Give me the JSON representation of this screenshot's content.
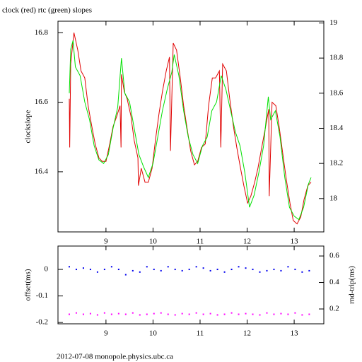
{
  "chart_data": [
    {
      "type": "line",
      "title": "clock (red) rtc (green) slopes",
      "ylabel": "clockslope",
      "xlim": [
        7.98,
        13.63
      ],
      "xticks": [
        9,
        10,
        11,
        12,
        13
      ],
      "ylim": [
        16.227,
        16.833
      ],
      "yticks": [
        16.4,
        16.6,
        16.8
      ],
      "y2lim": [
        17.81,
        19.01
      ],
      "y2ticks": [
        18,
        18.2,
        18.4,
        18.6,
        18.8,
        19
      ],
      "series": [
        {
          "color": "#e00000",
          "axis": "y",
          "x": [
            8.22,
            8.23,
            8.25,
            8.28,
            8.32,
            8.4,
            8.47,
            8.55,
            8.62,
            8.7,
            8.77,
            8.85,
            8.92,
            9.0,
            9.08,
            9.15,
            9.23,
            9.3,
            9.32,
            9.33,
            9.39,
            9.45,
            9.53,
            9.6,
            9.68,
            9.69,
            9.75,
            9.83,
            9.9,
            9.98,
            10.05,
            10.13,
            10.2,
            10.28,
            10.35,
            10.37,
            10.43,
            10.5,
            10.58,
            10.65,
            10.73,
            10.8,
            10.88,
            10.95,
            11.03,
            11.11,
            11.18,
            11.26,
            11.33,
            11.41,
            11.44,
            11.48,
            11.56,
            11.63,
            11.71,
            11.78,
            11.86,
            11.93,
            12.01,
            12.08,
            12.16,
            12.23,
            12.31,
            12.38,
            12.46,
            12.47,
            12.53,
            12.61,
            12.68,
            12.76,
            12.83,
            12.91,
            12.98,
            13.06,
            13.14,
            13.21,
            13.25,
            13.29,
            13.36
          ],
          "values": [
            16.61,
            16.47,
            16.71,
            16.75,
            16.8,
            16.75,
            16.69,
            16.67,
            16.59,
            16.53,
            16.48,
            16.44,
            16.43,
            16.43,
            16.48,
            16.53,
            16.56,
            16.59,
            16.47,
            16.68,
            16.63,
            16.61,
            16.56,
            16.49,
            16.44,
            16.36,
            16.41,
            16.37,
            16.37,
            16.41,
            16.49,
            16.57,
            16.63,
            16.69,
            16.73,
            16.46,
            16.77,
            16.75,
            16.67,
            16.59,
            16.52,
            16.46,
            16.42,
            16.43,
            16.47,
            16.48,
            16.59,
            16.67,
            16.67,
            16.69,
            16.47,
            16.71,
            16.69,
            16.61,
            16.53,
            16.47,
            16.41,
            16.36,
            16.31,
            16.33,
            16.37,
            16.41,
            16.47,
            16.52,
            16.58,
            16.33,
            16.6,
            16.59,
            16.53,
            16.45,
            16.38,
            16.31,
            16.26,
            16.25,
            16.27,
            16.32,
            16.34,
            16.36,
            16.37
          ]
        },
        {
          "color": "#00e000",
          "axis": "y2",
          "x": [
            8.22,
            8.25,
            8.3,
            8.35,
            8.45,
            8.55,
            8.65,
            8.75,
            8.85,
            8.95,
            9.05,
            9.15,
            9.25,
            9.33,
            9.4,
            9.5,
            9.6,
            9.7,
            9.8,
            9.9,
            10.0,
            10.1,
            10.2,
            10.3,
            10.4,
            10.45,
            10.55,
            10.65,
            10.75,
            10.85,
            10.95,
            11.05,
            11.15,
            11.25,
            11.35,
            11.45,
            11.55,
            11.65,
            11.75,
            11.85,
            11.95,
            12.05,
            12.15,
            12.25,
            12.35,
            12.45,
            12.5,
            12.6,
            12.7,
            12.8,
            12.9,
            13.0,
            13.1,
            13.2,
            13.3,
            13.36
          ],
          "values": [
            18.6,
            18.85,
            18.9,
            18.75,
            18.7,
            18.55,
            18.45,
            18.3,
            18.22,
            18.2,
            18.25,
            18.4,
            18.52,
            18.8,
            18.6,
            18.55,
            18.4,
            18.25,
            18.18,
            18.12,
            18.2,
            18.35,
            18.5,
            18.62,
            18.72,
            18.82,
            18.7,
            18.5,
            18.35,
            18.25,
            18.2,
            18.3,
            18.35,
            18.5,
            18.55,
            18.7,
            18.62,
            18.5,
            18.38,
            18.3,
            18.15,
            17.95,
            18.02,
            18.15,
            18.3,
            18.58,
            18.45,
            18.5,
            18.35,
            18.12,
            17.95,
            17.9,
            17.88,
            17.95,
            18.08,
            18.12
          ]
        }
      ]
    },
    {
      "type": "scatter",
      "ylabel": "offset(ms)",
      "y2label": "rnd-trip(ms)",
      "xlim": [
        7.98,
        13.63
      ],
      "xticks": [
        9,
        10,
        11,
        12,
        13
      ],
      "ylim": [
        -0.205,
        0.088
      ],
      "yticks": [
        0,
        -0.1,
        -0.2
      ],
      "y2lim": [
        0.088,
        0.675
      ],
      "y2ticks": [
        0.2,
        0.4,
        0.6
      ],
      "series": [
        {
          "color": "#0000ee",
          "axis": "y",
          "x": [
            8.22,
            8.37,
            8.52,
            8.67,
            8.82,
            8.97,
            9.12,
            9.27,
            9.42,
            9.57,
            9.72,
            9.87,
            10.02,
            10.17,
            10.32,
            10.47,
            10.62,
            10.77,
            10.92,
            11.07,
            11.22,
            11.37,
            11.52,
            11.67,
            11.82,
            11.97,
            12.12,
            12.27,
            12.42,
            12.57,
            12.72,
            12.87,
            13.02,
            13.17,
            13.32
          ],
          "values": [
            0.01,
            0.0,
            0.005,
            0.0,
            -0.01,
            0.0,
            0.01,
            0.0,
            -0.02,
            -0.005,
            -0.01,
            0.01,
            0.0,
            -0.005,
            0.01,
            0.0,
            -0.005,
            0.0,
            0.01,
            0.005,
            -0.005,
            0.0,
            -0.01,
            0.0,
            0.01,
            0.005,
            0.0,
            -0.01,
            -0.005,
            0.0,
            -0.005,
            0.01,
            0.0,
            -0.01,
            -0.005
          ]
        },
        {
          "color": "#ff00ff",
          "axis": "y2",
          "x": [
            8.22,
            8.37,
            8.52,
            8.67,
            8.82,
            8.97,
            9.12,
            9.27,
            9.42,
            9.57,
            9.72,
            9.87,
            10.02,
            10.17,
            10.32,
            10.47,
            10.62,
            10.77,
            10.92,
            11.07,
            11.22,
            11.37,
            11.52,
            11.67,
            11.82,
            11.97,
            12.12,
            12.27,
            12.42,
            12.57,
            12.72,
            12.87,
            13.02,
            13.17,
            13.32
          ],
          "values": [
            0.16,
            0.17,
            0.16,
            0.165,
            0.155,
            0.17,
            0.16,
            0.165,
            0.16,
            0.17,
            0.155,
            0.16,
            0.165,
            0.17,
            0.16,
            0.155,
            0.165,
            0.16,
            0.17,
            0.16,
            0.165,
            0.155,
            0.16,
            0.17,
            0.16,
            0.165,
            0.16,
            0.155,
            0.17,
            0.16,
            0.165,
            0.16,
            0.17,
            0.155,
            0.16
          ]
        }
      ]
    }
  ],
  "footer": "2012-07-08 monopole.physics.ubc.ca"
}
